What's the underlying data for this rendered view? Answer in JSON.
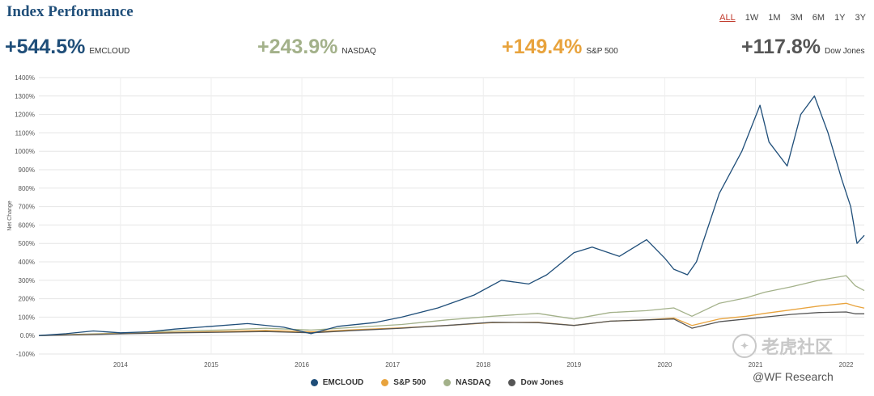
{
  "title": "Index Performance",
  "ranges": [
    "ALL",
    "1W",
    "1M",
    "3M",
    "6M",
    "1Y",
    "3Y"
  ],
  "active_range": "ALL",
  "stats": [
    {
      "value": "+544.5%",
      "label": "EMCLOUD",
      "color": "#1f4e79"
    },
    {
      "value": "+243.9%",
      "label": "NASDAQ",
      "color": "#a3b18a"
    },
    {
      "value": "+149.4%",
      "label": "S&P 500",
      "color": "#e8a33d"
    },
    {
      "value": "+117.8%",
      "label": "Dow Jones",
      "color": "#555555"
    }
  ],
  "legend": [
    {
      "label": "EMCLOUD",
      "color": "#1f4e79"
    },
    {
      "label": "S&P 500",
      "color": "#e8a33d"
    },
    {
      "label": "NASDAQ",
      "color": "#a3b18a"
    },
    {
      "label": "Dow Jones",
      "color": "#555555"
    }
  ],
  "watermark": {
    "logo_text": "老虎社区",
    "sub": "@WF Research"
  },
  "chart_data": {
    "type": "line",
    "ylabel": "Net Change",
    "xlabel": "",
    "ylim": [
      -100,
      1400
    ],
    "xlim": [
      2013.0,
      2022.1
    ],
    "y_ticks": [
      -100,
      0,
      100,
      200,
      300,
      400,
      500,
      600,
      700,
      800,
      900,
      1000,
      1100,
      1200,
      1300,
      1400
    ],
    "y_tick_labels": [
      "-100%",
      "0.0%",
      "100%",
      "200%",
      "300%",
      "400%",
      "500%",
      "600%",
      "700%",
      "800%",
      "900%",
      "1000%",
      "1100%",
      "1200%",
      "1300%",
      "1400%"
    ],
    "x_tick_labels": [
      "2014",
      "2015",
      "2016",
      "2017",
      "2018",
      "2019",
      "2020",
      "2021",
      "2022"
    ],
    "x_tick_values": [
      2013.9,
      2014.9,
      2015.9,
      2016.9,
      2017.9,
      2018.9,
      2019.9,
      2020.9,
      2021.9
    ],
    "grid": true,
    "legend_position": "bottom",
    "series": [
      {
        "name": "NASDAQ",
        "color": "#a3b18a",
        "x": [
          2013.0,
          2013.5,
          2014.0,
          2014.5,
          2015.0,
          2015.5,
          2016.0,
          2016.5,
          2017.0,
          2017.5,
          2018.0,
          2018.5,
          2018.9,
          2019.3,
          2019.7,
          2020.0,
          2020.2,
          2020.5,
          2020.8,
          2021.0,
          2021.3,
          2021.6,
          2021.9,
          2022.0,
          2022.1
        ],
        "y": [
          0,
          8,
          15,
          25,
          30,
          40,
          30,
          45,
          60,
          85,
          105,
          120,
          90,
          125,
          135,
          150,
          105,
          175,
          205,
          235,
          265,
          300,
          325,
          270,
          244
        ]
      },
      {
        "name": "S&P 500",
        "color": "#e8a33d",
        "x": [
          2013.0,
          2013.5,
          2014.0,
          2014.5,
          2015.0,
          2015.5,
          2016.0,
          2016.5,
          2017.0,
          2017.5,
          2018.0,
          2018.5,
          2018.9,
          2019.3,
          2019.7,
          2020.0,
          2020.2,
          2020.5,
          2020.8,
          2021.0,
          2021.3,
          2021.6,
          2021.9,
          2022.0,
          2022.1
        ],
        "y": [
          0,
          6,
          12,
          18,
          22,
          28,
          20,
          32,
          42,
          55,
          70,
          72,
          55,
          78,
          85,
          95,
          55,
          90,
          105,
          120,
          140,
          160,
          175,
          160,
          149
        ]
      },
      {
        "name": "Dow Jones",
        "color": "#555555",
        "x": [
          2013.0,
          2013.5,
          2014.0,
          2014.5,
          2015.0,
          2015.5,
          2016.0,
          2016.5,
          2017.0,
          2017.5,
          2018.0,
          2018.5,
          2018.9,
          2019.3,
          2019.7,
          2020.0,
          2020.2,
          2020.5,
          2020.8,
          2021.0,
          2021.3,
          2021.6,
          2021.9,
          2022.0,
          2022.1
        ],
        "y": [
          0,
          5,
          10,
          15,
          18,
          22,
          15,
          28,
          40,
          55,
          72,
          70,
          55,
          78,
          85,
          90,
          40,
          75,
          90,
          100,
          115,
          125,
          128,
          118,
          118
        ]
      },
      {
        "name": "EMCLOUD",
        "color": "#1f4e79",
        "x": [
          2013.0,
          2013.3,
          2013.6,
          2013.9,
          2014.2,
          2014.5,
          2014.9,
          2015.3,
          2015.7,
          2016.0,
          2016.3,
          2016.7,
          2017.0,
          2017.4,
          2017.8,
          2018.1,
          2018.4,
          2018.6,
          2018.9,
          2019.1,
          2019.4,
          2019.7,
          2019.9,
          2020.0,
          2020.15,
          2020.25,
          2020.5,
          2020.75,
          2020.95,
          2021.05,
          2021.25,
          2021.4,
          2021.55,
          2021.7,
          2021.85,
          2021.95,
          2022.02,
          2022.1
        ],
        "y": [
          0,
          10,
          25,
          15,
          20,
          35,
          50,
          65,
          45,
          10,
          50,
          70,
          100,
          150,
          220,
          300,
          280,
          330,
          450,
          480,
          430,
          520,
          420,
          360,
          330,
          400,
          770,
          1000,
          1250,
          1050,
          920,
          1200,
          1300,
          1100,
          850,
          700,
          500,
          544
        ]
      }
    ]
  }
}
